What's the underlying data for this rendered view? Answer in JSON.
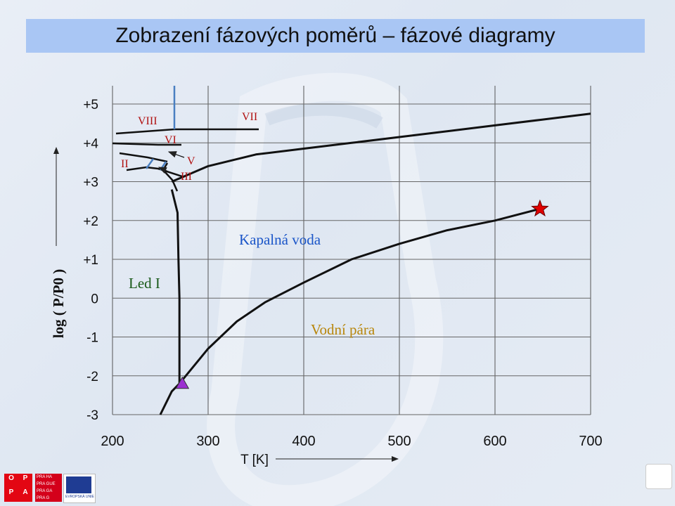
{
  "title": "Zobrazení fázových poměrů – fázové diagramy",
  "chart_data": {
    "type": "line",
    "xlabel": "T [K]",
    "ylabel": "log ( P/P0 )",
    "x_ticks": [
      "200",
      "300",
      "400",
      "500",
      "600",
      "700"
    ],
    "y_ticks": [
      "+5",
      "+4",
      "+3",
      "+2",
      "+1",
      "0",
      "-1",
      "-2",
      "-3"
    ],
    "xlim": [
      200,
      700
    ],
    "ylim": [
      -3,
      5
    ],
    "grid": true,
    "series": [
      {
        "x": [
          250,
          262,
          270,
          270,
          270,
          269,
          268,
          262
        ],
        "y": [
          -3,
          -2.4,
          -2.2,
          -1,
          0,
          1.0,
          2.2,
          2.8
        ]
      },
      {
        "x": [
          270,
          300,
          330,
          360,
          400,
          450,
          500,
          550,
          600,
          647
        ],
        "y": [
          -2.2,
          -1.3,
          -0.6,
          -0.1,
          0.4,
          1.0,
          1.4,
          1.75,
          2.0,
          2.3
        ]
      },
      {
        "x": [
          262,
          300,
          350,
          400,
          450,
          500,
          550,
          600,
          650,
          700
        ],
        "y": [
          3.0,
          3.4,
          3.7,
          3.85,
          4.0,
          4.15,
          4.3,
          4.45,
          4.6,
          4.75
        ]
      }
    ],
    "markers": [
      {
        "label": "triple point",
        "x": 273,
        "y": -2.2,
        "shape": "triangle",
        "color": "#9b30d0"
      },
      {
        "label": "critical point",
        "x": 647,
        "y": 2.3,
        "shape": "star",
        "color": "#e00000"
      }
    ],
    "region_labels": [
      "Led I",
      "Kapalná voda",
      "Vodní pára"
    ],
    "ice_phase_labels": [
      "VIII",
      "VI",
      "VII",
      "II",
      "V",
      "III"
    ]
  },
  "colors": {
    "region_ice": "#1a5a1a",
    "region_liquid": "#1a55c8",
    "region_vapor": "#b8860b",
    "ice_label": "#b01010",
    "title_bg": "#a9c6f4",
    "triangle": "#9b30d0",
    "star": "#e00000"
  },
  "footer": {
    "opp_letters": [
      "O",
      "P",
      "P",
      "A"
    ],
    "praha_lines": [
      "PRA HA",
      "PRA GUE",
      "PRA GA",
      "PRA G"
    ],
    "eu_text": "EVROPSKÁ UNIE"
  }
}
